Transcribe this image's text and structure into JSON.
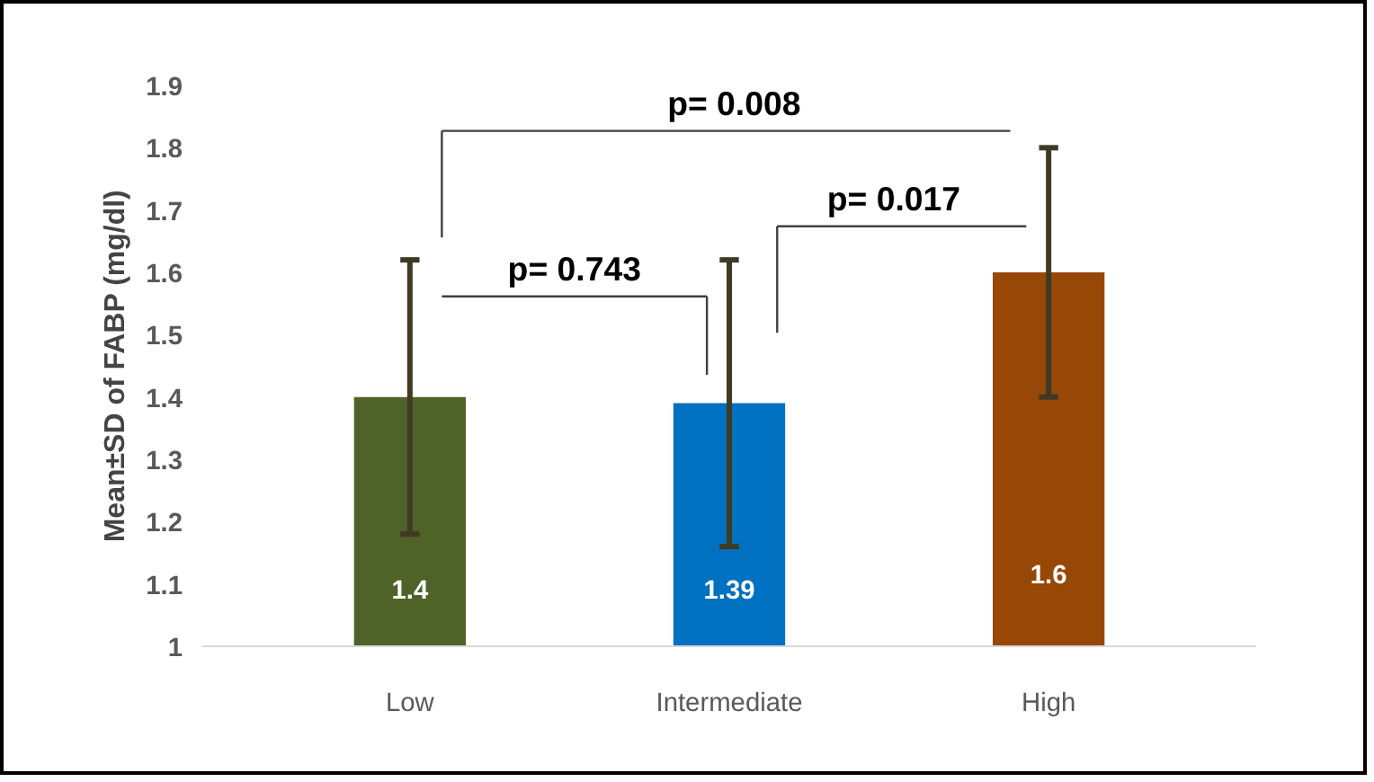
{
  "chart_data": {
    "type": "bar",
    "ylabel": "Mean±SD of FABP (mg/dl)",
    "categories": [
      "Low",
      "Intermediate",
      "High"
    ],
    "values": [
      1.4,
      1.39,
      1.6
    ],
    "colors": [
      "#4f6228",
      "#0070c0",
      "#974706"
    ],
    "errors": [
      [
        1.18,
        1.62
      ],
      [
        1.16,
        1.62
      ],
      [
        1.4,
        1.8
      ]
    ],
    "data_labels": true,
    "ylim": [
      1,
      1.9
    ],
    "yticks": [
      1,
      1.1,
      1.2,
      1.3,
      1.4,
      1.5,
      1.6,
      1.7,
      1.8,
      1.9
    ],
    "grid": false,
    "annotations": [
      "p= 0.743",
      "p= 0.017",
      "p= 0.008"
    ]
  }
}
